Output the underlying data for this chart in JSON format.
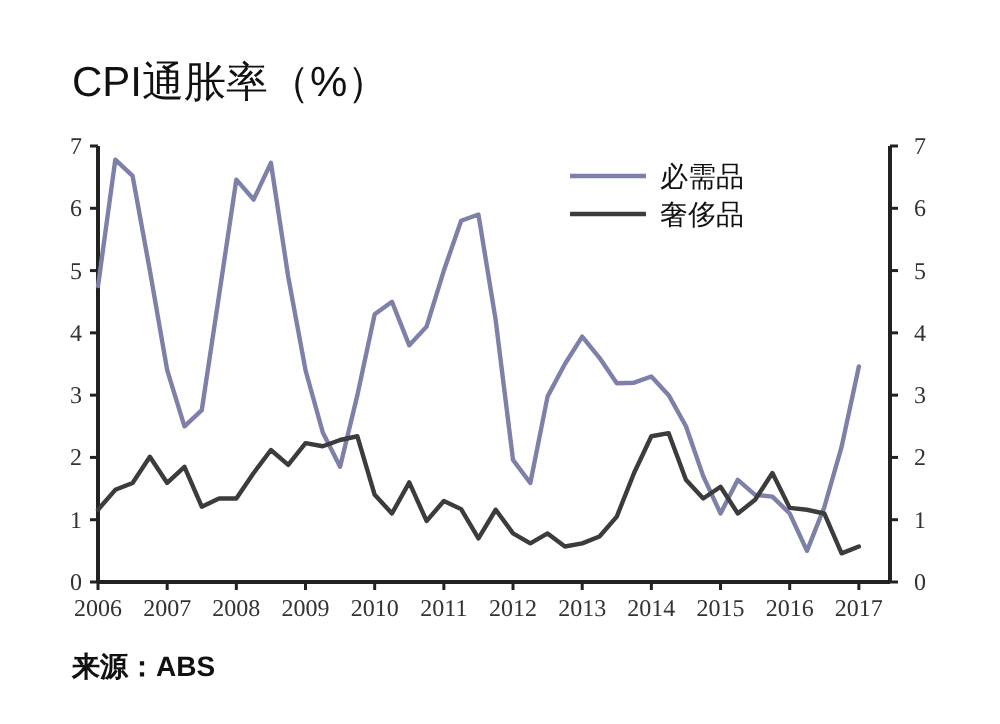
{
  "chart_data": {
    "type": "line",
    "title": "CPI通胀率（%）",
    "annotations": [
      "来源：ABS"
    ],
    "legend": "top right",
    "grid": false,
    "marker": "none",
    "line_style": "solid",
    "xlim": [
      2006,
      2017.45
    ],
    "xticks": [
      2006,
      2007,
      2008,
      2009,
      2010,
      2011,
      2012,
      2013,
      2014,
      2015,
      2016,
      2017
    ],
    "ylim": [
      0,
      7
    ],
    "yticks": [
      0,
      1,
      2,
      3,
      4,
      5,
      6,
      7
    ],
    "y2lim": [
      0,
      7
    ],
    "y2ticks": [
      0,
      1,
      2,
      3,
      4,
      5,
      6,
      7
    ],
    "series": [
      {
        "name": "必需品",
        "color": "#7d80a8",
        "x": [
          2006,
          2006.25,
          2006.5,
          2006.75,
          2007,
          2007.25,
          2007.5,
          2007.75,
          2008,
          2008.25,
          2008.5,
          2008.75,
          2009,
          2009.25,
          2009.5,
          2009.75,
          2010,
          2010.25,
          2010.5,
          2010.75,
          2011,
          2011.25,
          2011.5,
          2011.75,
          2012,
          2012.25,
          2012.5,
          2012.75,
          2013,
          2013.25,
          2013.5,
          2013.75,
          2014,
          2014.25,
          2014.5,
          2014.75,
          2015,
          2015.25,
          2015.5,
          2015.75,
          2016,
          2016.25,
          2016.5,
          2016.75,
          2017
        ],
        "values": [
          4.75,
          6.78,
          6.52,
          5.0,
          3.4,
          2.5,
          2.76,
          4.6,
          6.46,
          6.14,
          6.73,
          4.9,
          3.4,
          2.4,
          1.85,
          3.0,
          4.3,
          4.5,
          3.8,
          4.1,
          5.0,
          5.8,
          5.9,
          4.2,
          1.96,
          1.59,
          2.98,
          3.5,
          3.94,
          3.6,
          3.19,
          3.2,
          3.3,
          3.0,
          2.5,
          1.7,
          1.1,
          1.64,
          1.4,
          1.37,
          1.1,
          0.5,
          1.2,
          2.17,
          3.46
        ]
      },
      {
        "name": "奢侈品",
        "color": "#3c3c3c",
        "x": [
          2006,
          2006.25,
          2006.5,
          2006.75,
          2007,
          2007.25,
          2007.5,
          2007.75,
          2008,
          2008.25,
          2008.5,
          2008.75,
          2009,
          2009.25,
          2009.5,
          2009.75,
          2010,
          2010.25,
          2010.5,
          2010.75,
          2011,
          2011.25,
          2011.5,
          2011.75,
          2012,
          2012.25,
          2012.5,
          2012.75,
          2013,
          2013.25,
          2013.5,
          2013.75,
          2014,
          2014.25,
          2014.5,
          2014.75,
          2015,
          2015.25,
          2015.5,
          2015.75,
          2016,
          2016.25,
          2016.5,
          2016.75,
          2017
        ],
        "values": [
          1.16,
          1.48,
          1.59,
          2.01,
          1.59,
          1.85,
          1.21,
          1.34,
          1.34,
          1.75,
          2.12,
          1.88,
          2.23,
          2.18,
          2.28,
          2.34,
          1.4,
          1.1,
          1.6,
          0.98,
          1.3,
          1.17,
          0.7,
          1.16,
          0.78,
          0.62,
          0.78,
          0.57,
          0.62,
          0.73,
          1.05,
          1.75,
          2.34,
          2.39,
          1.64,
          1.34,
          1.53,
          1.1,
          1.32,
          1.75,
          1.19,
          1.16,
          1.1,
          0.46,
          0.57
        ]
      }
    ]
  }
}
